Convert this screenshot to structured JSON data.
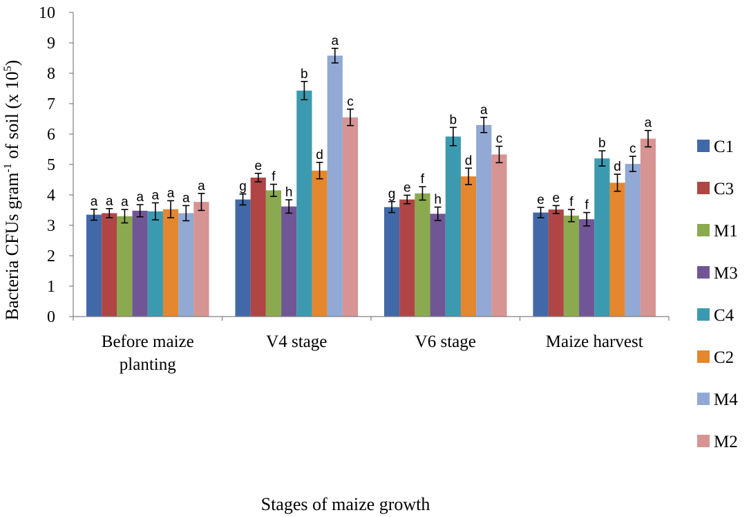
{
  "chart_data": {
    "type": "bar",
    "title": "",
    "xlabel": "Stages of maize growth",
    "ylabel": {
      "main": "Bacteria CFUs gram",
      "sup1": "-1",
      "mid": " of soil (x 10",
      "sup2": "5",
      "end": ")"
    },
    "ylim": [
      0,
      10
    ],
    "yticks": [
      "0",
      "1",
      "2",
      "3",
      "4",
      "5",
      "6",
      "7",
      "8",
      "9",
      "10"
    ],
    "categories": [
      [
        "Before maize",
        "planting"
      ],
      [
        "V4 stage"
      ],
      [
        "V6 stage"
      ],
      [
        "Maize harvest"
      ]
    ],
    "legend_position": "right",
    "series": [
      {
        "name": "C1",
        "color": "#4169A8",
        "values": [
          3.35,
          3.85,
          3.6,
          3.42
        ],
        "errors": [
          0.18,
          0.18,
          0.18,
          0.17
        ],
        "labels": [
          "a",
          "g",
          "g",
          "e"
        ]
      },
      {
        "name": "C3",
        "color": "#B04545",
        "values": [
          3.4,
          4.57,
          3.85,
          3.52
        ],
        "errors": [
          0.15,
          0.14,
          0.14,
          0.13
        ],
        "labels": [
          "a",
          "e",
          "e",
          "e"
        ]
      },
      {
        "name": "M1",
        "color": "#8BAA4F",
        "values": [
          3.3,
          4.15,
          4.05,
          3.32
        ],
        "errors": [
          0.22,
          0.2,
          0.22,
          0.2
        ],
        "labels": [
          "a",
          "f",
          "f",
          "f"
        ]
      },
      {
        "name": "M3",
        "color": "#715696",
        "values": [
          3.48,
          3.62,
          3.38,
          3.2
        ],
        "errors": [
          0.2,
          0.22,
          0.22,
          0.22
        ],
        "labels": [
          "a",
          "h",
          "h",
          "f"
        ]
      },
      {
        "name": "C4",
        "color": "#3C9AB0",
        "values": [
          3.46,
          7.43,
          5.92,
          5.2
        ],
        "errors": [
          0.28,
          0.3,
          0.3,
          0.25
        ],
        "labels": [
          "a",
          "b",
          "b",
          "b"
        ]
      },
      {
        "name": "C2",
        "color": "#E5872F",
        "values": [
          3.53,
          4.8,
          4.61,
          4.4
        ],
        "errors": [
          0.28,
          0.27,
          0.27,
          0.28
        ],
        "labels": [
          "a",
          "d",
          "d",
          "d"
        ]
      },
      {
        "name": "M4",
        "color": "#91A9D4",
        "values": [
          3.4,
          8.58,
          6.3,
          5.02
        ],
        "errors": [
          0.25,
          0.24,
          0.25,
          0.25
        ],
        "labels": [
          "a",
          "a",
          "a",
          "c"
        ]
      },
      {
        "name": "M2",
        "color": "#D69492",
        "values": [
          3.77,
          6.55,
          5.33,
          5.85
        ],
        "errors": [
          0.28,
          0.27,
          0.27,
          0.27
        ],
        "labels": [
          "a",
          "c",
          "c",
          "a"
        ]
      }
    ]
  }
}
